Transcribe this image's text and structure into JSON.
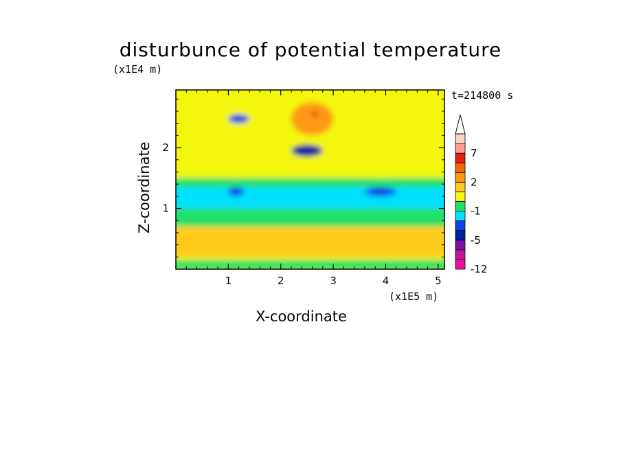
{
  "chart_data": {
    "type": "heatmap",
    "title": "disturbunce of potential temperature",
    "xlabel": "X-coordinate",
    "ylabel": "Z-coordinate",
    "x_unit": "(x1E5 m)",
    "y_unit": "(x1E4 m)",
    "time_label": "t=214800 s",
    "xlim": [
      0,
      5.12
    ],
    "ylim": [
      0,
      2.95
    ],
    "xticks": [
      1,
      2,
      3,
      4,
      5
    ],
    "yticks": [
      1,
      2
    ],
    "colorbar": {
      "colors": [
        "#ee0f9c",
        "#c31597",
        "#7d0fa9",
        "#001f9e",
        "#0e44e6",
        "#00e0ff",
        "#24e06a",
        "#f3f70c",
        "#ffcc1e",
        "#ff9912",
        "#f5650c",
        "#e3230f",
        "#ff9e94",
        "#ffd2c6"
      ],
      "labels": [
        "-12",
        "-5",
        "-1",
        "2",
        "7"
      ],
      "label_values": [
        -12,
        -5,
        -1,
        2,
        7
      ],
      "extend": "max"
    },
    "regions": [
      {
        "x": [
          0.0,
          5.12
        ],
        "z": [
          0.0,
          2.95
        ],
        "level": "+0.5",
        "color": "#f3f70c"
      },
      {
        "x": [
          0.0,
          5.12
        ],
        "z": [
          1.0,
          1.35
        ],
        "level": "-1",
        "color": "#00e0ff"
      },
      {
        "x": [
          0.0,
          5.12
        ],
        "z": [
          0.7,
          1.0
        ],
        "level": "0",
        "color": "#24e06a"
      },
      {
        "x": [
          0.0,
          5.12
        ],
        "z": [
          1.35,
          1.5
        ],
        "level": "0",
        "color": "#24e06a"
      },
      {
        "x": [
          1.0,
          1.3
        ],
        "z": [
          1.2,
          1.35
        ],
        "level": "-3",
        "color": "#0e44e6"
      },
      {
        "x": [
          3.6,
          4.2
        ],
        "z": [
          1.2,
          1.35
        ],
        "level": "-3",
        "color": "#0e44e6"
      },
      {
        "x": [
          2.2,
          2.8
        ],
        "z": [
          1.85,
          2.05
        ],
        "level": "-5",
        "color": "#001f9e"
      },
      {
        "x": [
          1.0,
          1.4
        ],
        "z": [
          2.4,
          2.55
        ],
        "level": "-3",
        "color": "#0e44e6"
      },
      {
        "x": [
          2.2,
          3.0
        ],
        "z": [
          2.2,
          2.75
        ],
        "level": "4",
        "color": "#ff9912"
      },
      {
        "x": [
          2.6,
          2.7
        ],
        "z": [
          2.5,
          2.6
        ],
        "level": "7",
        "color": "#e3230f"
      },
      {
        "x": [
          0.0,
          5.12
        ],
        "z": [
          0.2,
          0.7
        ],
        "level": "2",
        "color": "#ffcc1e"
      },
      {
        "x": [
          0.0,
          5.12
        ],
        "z": [
          0.0,
          0.15
        ],
        "level": "0",
        "color": "#24e06a"
      }
    ]
  }
}
